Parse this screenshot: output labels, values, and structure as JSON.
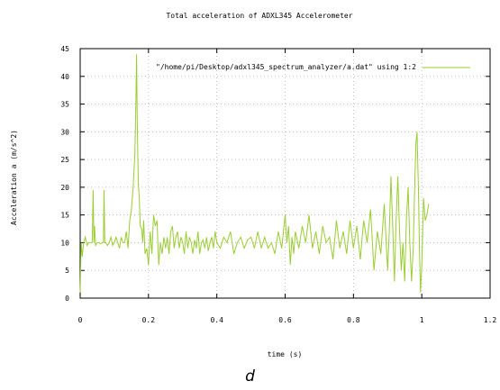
{
  "caption": "d",
  "chart_data": {
    "type": "line",
    "title": "Total acceleration of ADXL345 Accelerometer",
    "xlabel": "time (s)",
    "ylabel": "Acceleration a (m/s^2)",
    "xlim": [
      0,
      1.2
    ],
    "ylim": [
      0,
      45
    ],
    "xticks": [
      "0",
      "0.2",
      "0.4",
      "0.6",
      "0.8",
      "1",
      "1.2"
    ],
    "yticks": [
      "0",
      "5",
      "10",
      "15",
      "20",
      "25",
      "30",
      "35",
      "40",
      "45"
    ],
    "grid": true,
    "legend_position": "top-right",
    "line_color": "#9acd32",
    "series": [
      {
        "name": "\"/home/pi/Desktop/adxl345_spectrum_analyzer/a.dat\" using 1:2",
        "x": [
          0,
          0.003,
          0.006,
          0.01,
          0.015,
          0.02,
          0.025,
          0.03,
          0.035,
          0.038,
          0.04,
          0.042,
          0.045,
          0.05,
          0.055,
          0.06,
          0.065,
          0.068,
          0.07,
          0.072,
          0.075,
          0.08,
          0.085,
          0.09,
          0.095,
          0.1,
          0.105,
          0.11,
          0.115,
          0.12,
          0.125,
          0.13,
          0.135,
          0.14,
          0.145,
          0.15,
          0.155,
          0.16,
          0.163,
          0.165,
          0.167,
          0.17,
          0.173,
          0.176,
          0.18,
          0.183,
          0.186,
          0.19,
          0.195,
          0.2,
          0.205,
          0.21,
          0.215,
          0.22,
          0.225,
          0.23,
          0.235,
          0.24,
          0.245,
          0.25,
          0.255,
          0.26,
          0.265,
          0.27,
          0.275,
          0.28,
          0.285,
          0.29,
          0.295,
          0.3,
          0.305,
          0.31,
          0.315,
          0.32,
          0.325,
          0.33,
          0.335,
          0.34,
          0.345,
          0.35,
          0.355,
          0.36,
          0.365,
          0.37,
          0.375,
          0.38,
          0.385,
          0.39,
          0.395,
          0.4,
          0.41,
          0.42,
          0.43,
          0.44,
          0.45,
          0.46,
          0.47,
          0.48,
          0.49,
          0.5,
          0.51,
          0.52,
          0.53,
          0.54,
          0.55,
          0.56,
          0.57,
          0.58,
          0.59,
          0.6,
          0.605,
          0.61,
          0.615,
          0.62,
          0.625,
          0.63,
          0.64,
          0.65,
          0.66,
          0.67,
          0.68,
          0.69,
          0.7,
          0.71,
          0.72,
          0.73,
          0.74,
          0.75,
          0.76,
          0.77,
          0.78,
          0.79,
          0.8,
          0.81,
          0.82,
          0.83,
          0.84,
          0.85,
          0.86,
          0.87,
          0.88,
          0.89,
          0.9,
          0.905,
          0.91,
          0.915,
          0.92,
          0.925,
          0.93,
          0.935,
          0.94,
          0.945,
          0.95,
          0.955,
          0.96,
          0.965,
          0.97,
          0.975,
          0.98,
          0.983,
          0.986,
          0.99,
          0.993,
          0.996,
          1.0,
          1.005,
          1.01,
          1.015,
          1.02
        ],
        "y": [
          1,
          10,
          7.5,
          10,
          11,
          9.5,
          10,
          10,
          10,
          19.5,
          10,
          13,
          9.5,
          10,
          10,
          9.8,
          10,
          10,
          19.5,
          10,
          10,
          9.5,
          10,
          11,
          9.5,
          10,
          11,
          10,
          9,
          11,
          10,
          10,
          12,
          9,
          14,
          16,
          20,
          26,
          35,
          44,
          32,
          21,
          18,
          13,
          12.5,
          10,
          14,
          8,
          9,
          6,
          12,
          8,
          15,
          13,
          14,
          6,
          10,
          8,
          11,
          9,
          11,
          8,
          12,
          13,
          9,
          11,
          12,
          9,
          11,
          10,
          8,
          12,
          9,
          11,
          10,
          8,
          10.5,
          9,
          12,
          8,
          10,
          10.5,
          9,
          11,
          8.5,
          10,
          11,
          9,
          12,
          10,
          9,
          11,
          10,
          12,
          8,
          10,
          11,
          9,
          10.5,
          11,
          9,
          12,
          9,
          11,
          9,
          10,
          8,
          12,
          9,
          15,
          10,
          13,
          6,
          11,
          8,
          12,
          9,
          13,
          10,
          15,
          9,
          12,
          8,
          13,
          10,
          11,
          7,
          14,
          9,
          12,
          8,
          14,
          9,
          13,
          7,
          14,
          10,
          16,
          5,
          12,
          8,
          17,
          5,
          12,
          22,
          13,
          3,
          14,
          22,
          12,
          5,
          10,
          3,
          14,
          20,
          10,
          3,
          9,
          22,
          28,
          30,
          20,
          10,
          1,
          6,
          18,
          14,
          15,
          17
        ]
      }
    ]
  }
}
